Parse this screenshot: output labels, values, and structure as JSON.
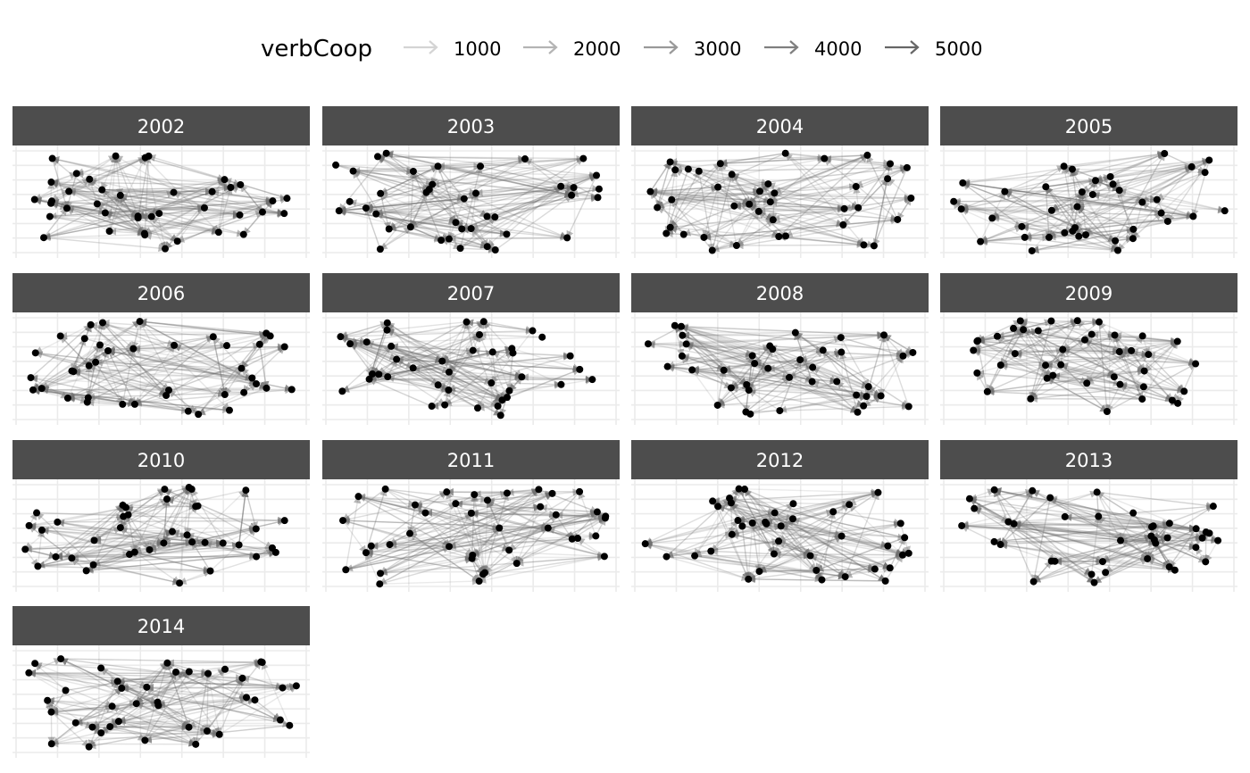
{
  "legend": {
    "title": "verbCoop",
    "items": [
      {
        "label": "1000",
        "value": 1000
      },
      {
        "label": "2000",
        "value": 2000
      },
      {
        "label": "3000",
        "value": 3000
      },
      {
        "label": "4000",
        "value": 4000
      },
      {
        "label": "5000",
        "value": 5000
      }
    ]
  },
  "facets": [
    {
      "label": "2002"
    },
    {
      "label": "2003"
    },
    {
      "label": "2004"
    },
    {
      "label": "2005"
    },
    {
      "label": "2006"
    },
    {
      "label": "2007"
    },
    {
      "label": "2008"
    },
    {
      "label": "2009"
    },
    {
      "label": "2010"
    },
    {
      "label": "2011"
    },
    {
      "label": "2012"
    },
    {
      "label": "2013"
    },
    {
      "label": "2014"
    }
  ],
  "colors": {
    "strip_bg": "#4d4d4d",
    "strip_text": "#ffffff",
    "node": "#000000",
    "edge": "#707070",
    "grid": "#ebebeb"
  }
}
